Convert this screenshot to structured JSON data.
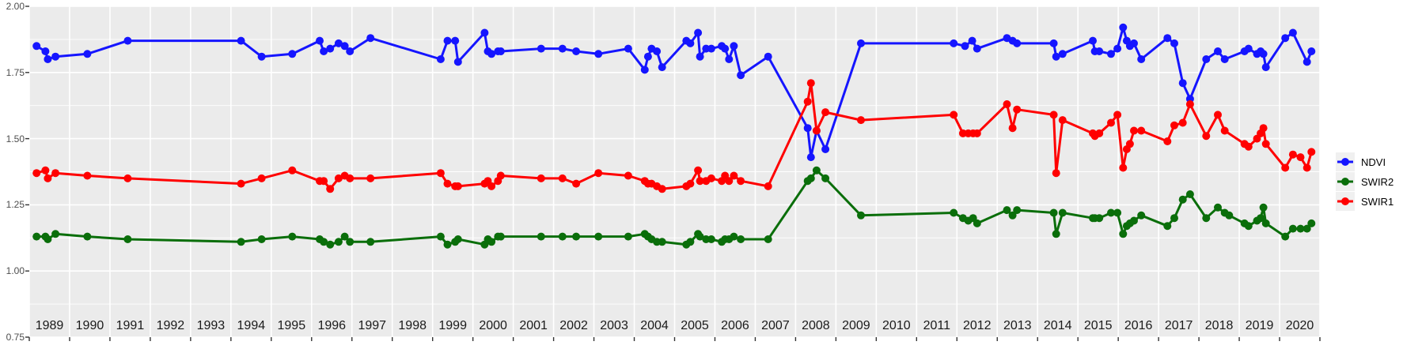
{
  "figure": {
    "background": "#FFFFFF",
    "panel_background": "#EBEBEB",
    "grid_color": "#FFFFFF",
    "tick_color": "#333333"
  },
  "y_axis": {
    "tick_labels": [
      "2.00",
      "1.75",
      "1.50",
      "1.25",
      "1.00",
      "0.75"
    ],
    "tick_values": [
      2.0,
      1.75,
      1.5,
      1.25,
      1.0,
      0.75
    ],
    "minor_values": [
      1.875,
      1.625,
      1.375,
      1.125,
      0.875
    ]
  },
  "x_axis": {
    "year_labels": [
      "1989",
      "1990",
      "1991",
      "1992",
      "1993",
      "1994",
      "1995",
      "1996",
      "1997",
      "1998",
      "1999",
      "2000",
      "2001",
      "2002",
      "2003",
      "2004",
      "2005",
      "2006",
      "2007",
      "2008",
      "2009",
      "2010",
      "2011",
      "2012",
      "2013",
      "2014",
      "2015",
      "2016",
      "2017",
      "2018",
      "2019",
      "2020"
    ]
  },
  "legend": {
    "items": [
      {
        "label": "NDVI",
        "color": "#1515FF"
      },
      {
        "label": "SWIR2",
        "color": "#0A6E0A"
      },
      {
        "label": "SWIR1",
        "color": "#FF0000"
      }
    ]
  },
  "chart_data": {
    "type": "line",
    "title": "",
    "xlabel": "",
    "ylabel": "",
    "xlim": [
      1989,
      2021
    ],
    "ylim": [
      0.75,
      2.0
    ],
    "grid": "major-xy + minor-y",
    "legend_position": "right",
    "marker": "circle",
    "series": [
      {
        "name": "NDVI",
        "color": "#1515FF",
        "x": [
          1989.18,
          1989.4,
          1989.46,
          1989.65,
          1990.44,
          1991.44,
          1994.25,
          1994.76,
          1995.52,
          1996.2,
          1996.3,
          1996.46,
          1996.67,
          1996.82,
          1996.95,
          1997.46,
          1999.2,
          1999.37,
          1999.56,
          1999.63,
          2000.29,
          2000.37,
          2000.46,
          2000.62,
          2000.69,
          2001.69,
          2002.22,
          2002.56,
          2003.11,
          2003.85,
          2004.26,
          2004.34,
          2004.43,
          2004.56,
          2004.69,
          2005.29,
          2005.39,
          2005.58,
          2005.63,
          2005.78,
          2005.91,
          2006.17,
          2006.25,
          2006.35,
          2006.47,
          2006.64,
          2007.32,
          2008.3,
          2008.38,
          2008.52,
          2008.74,
          2009.62,
          2011.92,
          2012.2,
          2012.38,
          2012.5,
          2013.24,
          2013.38,
          2013.49,
          2014.4,
          2014.46,
          2014.62,
          2015.37,
          2015.42,
          2015.53,
          2015.82,
          2015.98,
          2016.12,
          2016.21,
          2016.29,
          2016.39,
          2016.57,
          2017.22,
          2017.39,
          2017.6,
          2017.78,
          2018.18,
          2018.47,
          2018.64,
          2019.13,
          2019.23,
          2019.44,
          2019.53,
          2019.6,
          2019.66,
          2020.14,
          2020.33,
          2020.68,
          2020.79
        ],
        "y": [
          1.85,
          1.83,
          1.8,
          1.81,
          1.82,
          1.87,
          1.87,
          1.81,
          1.82,
          1.87,
          1.83,
          1.84,
          1.86,
          1.85,
          1.83,
          1.88,
          1.8,
          1.87,
          1.87,
          1.79,
          1.9,
          1.83,
          1.82,
          1.83,
          1.83,
          1.84,
          1.84,
          1.83,
          1.82,
          1.84,
          1.76,
          1.81,
          1.84,
          1.83,
          1.77,
          1.87,
          1.86,
          1.9,
          1.81,
          1.84,
          1.84,
          1.85,
          1.84,
          1.8,
          1.85,
          1.74,
          1.81,
          1.54,
          1.43,
          1.53,
          1.46,
          1.86,
          1.86,
          1.85,
          1.87,
          1.84,
          1.88,
          1.87,
          1.86,
          1.86,
          1.81,
          1.82,
          1.87,
          1.83,
          1.83,
          1.82,
          1.84,
          1.92,
          1.87,
          1.85,
          1.86,
          1.8,
          1.88,
          1.86,
          1.71,
          1.65,
          1.8,
          1.83,
          1.8,
          1.83,
          1.84,
          1.82,
          1.83,
          1.82,
          1.77,
          1.88,
          1.9,
          1.79,
          1.83
        ]
      },
      {
        "name": "SWIR2",
        "color": "#0A6E0A",
        "x": [
          1989.18,
          1989.4,
          1989.46,
          1989.65,
          1990.44,
          1991.44,
          1994.25,
          1994.76,
          1995.52,
          1996.2,
          1996.3,
          1996.46,
          1996.67,
          1996.82,
          1996.95,
          1997.46,
          1999.2,
          1999.37,
          1999.56,
          1999.63,
          2000.29,
          2000.37,
          2000.46,
          2000.62,
          2000.69,
          2001.69,
          2002.22,
          2002.56,
          2003.11,
          2003.85,
          2004.26,
          2004.34,
          2004.43,
          2004.56,
          2004.69,
          2005.29,
          2005.39,
          2005.58,
          2005.63,
          2005.78,
          2005.91,
          2006.17,
          2006.25,
          2006.35,
          2006.47,
          2006.64,
          2007.32,
          2008.3,
          2008.38,
          2008.52,
          2008.74,
          2009.62,
          2011.92,
          2012.15,
          2012.28,
          2012.4,
          2012.5,
          2013.24,
          2013.38,
          2013.49,
          2014.4,
          2014.46,
          2014.62,
          2015.37,
          2015.42,
          2015.53,
          2015.82,
          2015.98,
          2016.12,
          2016.21,
          2016.29,
          2016.39,
          2016.57,
          2017.22,
          2017.39,
          2017.6,
          2017.78,
          2018.18,
          2018.47,
          2018.64,
          2018.75,
          2019.13,
          2019.23,
          2019.44,
          2019.53,
          2019.6,
          2019.66,
          2020.14,
          2020.33,
          2020.52,
          2020.68,
          2020.79
        ],
        "y": [
          1.13,
          1.13,
          1.12,
          1.14,
          1.13,
          1.12,
          1.11,
          1.12,
          1.13,
          1.12,
          1.11,
          1.1,
          1.11,
          1.13,
          1.11,
          1.11,
          1.13,
          1.1,
          1.11,
          1.12,
          1.1,
          1.12,
          1.11,
          1.13,
          1.13,
          1.13,
          1.13,
          1.13,
          1.13,
          1.13,
          1.14,
          1.13,
          1.12,
          1.11,
          1.11,
          1.1,
          1.11,
          1.14,
          1.13,
          1.12,
          1.12,
          1.11,
          1.12,
          1.12,
          1.13,
          1.12,
          1.12,
          1.34,
          1.35,
          1.38,
          1.35,
          1.21,
          1.22,
          1.2,
          1.19,
          1.2,
          1.18,
          1.23,
          1.21,
          1.23,
          1.22,
          1.14,
          1.22,
          1.2,
          1.2,
          1.2,
          1.22,
          1.22,
          1.14,
          1.17,
          1.18,
          1.19,
          1.21,
          1.17,
          1.2,
          1.27,
          1.29,
          1.2,
          1.24,
          1.22,
          1.21,
          1.18,
          1.17,
          1.19,
          1.2,
          1.24,
          1.18,
          1.13,
          1.16,
          1.16,
          1.16,
          1.18
        ]
      },
      {
        "name": "SWIR1",
        "color": "#FF0000",
        "x": [
          1989.18,
          1989.4,
          1989.46,
          1989.65,
          1990.44,
          1991.44,
          1994.25,
          1994.76,
          1995.52,
          1996.2,
          1996.3,
          1996.46,
          1996.67,
          1996.82,
          1996.95,
          1997.46,
          1999.2,
          1999.37,
          1999.56,
          1999.63,
          2000.29,
          2000.37,
          2000.46,
          2000.62,
          2000.69,
          2001.69,
          2002.22,
          2002.56,
          2003.11,
          2003.85,
          2004.26,
          2004.34,
          2004.43,
          2004.56,
          2004.69,
          2005.29,
          2005.39,
          2005.58,
          2005.63,
          2005.78,
          2005.91,
          2006.17,
          2006.25,
          2006.35,
          2006.47,
          2006.64,
          2007.32,
          2008.3,
          2008.38,
          2008.52,
          2008.74,
          2009.62,
          2011.92,
          2012.15,
          2012.28,
          2012.4,
          2012.5,
          2013.24,
          2013.38,
          2013.49,
          2014.4,
          2014.46,
          2014.62,
          2015.37,
          2015.42,
          2015.53,
          2015.82,
          2015.98,
          2016.12,
          2016.21,
          2016.29,
          2016.39,
          2016.57,
          2017.22,
          2017.39,
          2017.6,
          2017.78,
          2018.18,
          2018.47,
          2018.64,
          2019.13,
          2019.23,
          2019.44,
          2019.53,
          2019.6,
          2019.66,
          2020.14,
          2020.33,
          2020.52,
          2020.68,
          2020.79
        ],
        "y": [
          1.37,
          1.38,
          1.35,
          1.37,
          1.36,
          1.35,
          1.33,
          1.35,
          1.38,
          1.34,
          1.34,
          1.31,
          1.35,
          1.36,
          1.35,
          1.35,
          1.37,
          1.33,
          1.32,
          1.32,
          1.33,
          1.34,
          1.32,
          1.34,
          1.36,
          1.35,
          1.35,
          1.33,
          1.37,
          1.36,
          1.34,
          1.33,
          1.33,
          1.32,
          1.31,
          1.32,
          1.33,
          1.38,
          1.34,
          1.34,
          1.35,
          1.34,
          1.36,
          1.34,
          1.36,
          1.34,
          1.32,
          1.64,
          1.71,
          1.53,
          1.6,
          1.57,
          1.59,
          1.52,
          1.52,
          1.52,
          1.52,
          1.63,
          1.54,
          1.61,
          1.59,
          1.37,
          1.57,
          1.52,
          1.51,
          1.52,
          1.56,
          1.59,
          1.39,
          1.46,
          1.48,
          1.53,
          1.53,
          1.49,
          1.55,
          1.56,
          1.63,
          1.51,
          1.59,
          1.53,
          1.48,
          1.47,
          1.5,
          1.52,
          1.54,
          1.48,
          1.39,
          1.44,
          1.43,
          1.39,
          1.45
        ]
      }
    ]
  }
}
